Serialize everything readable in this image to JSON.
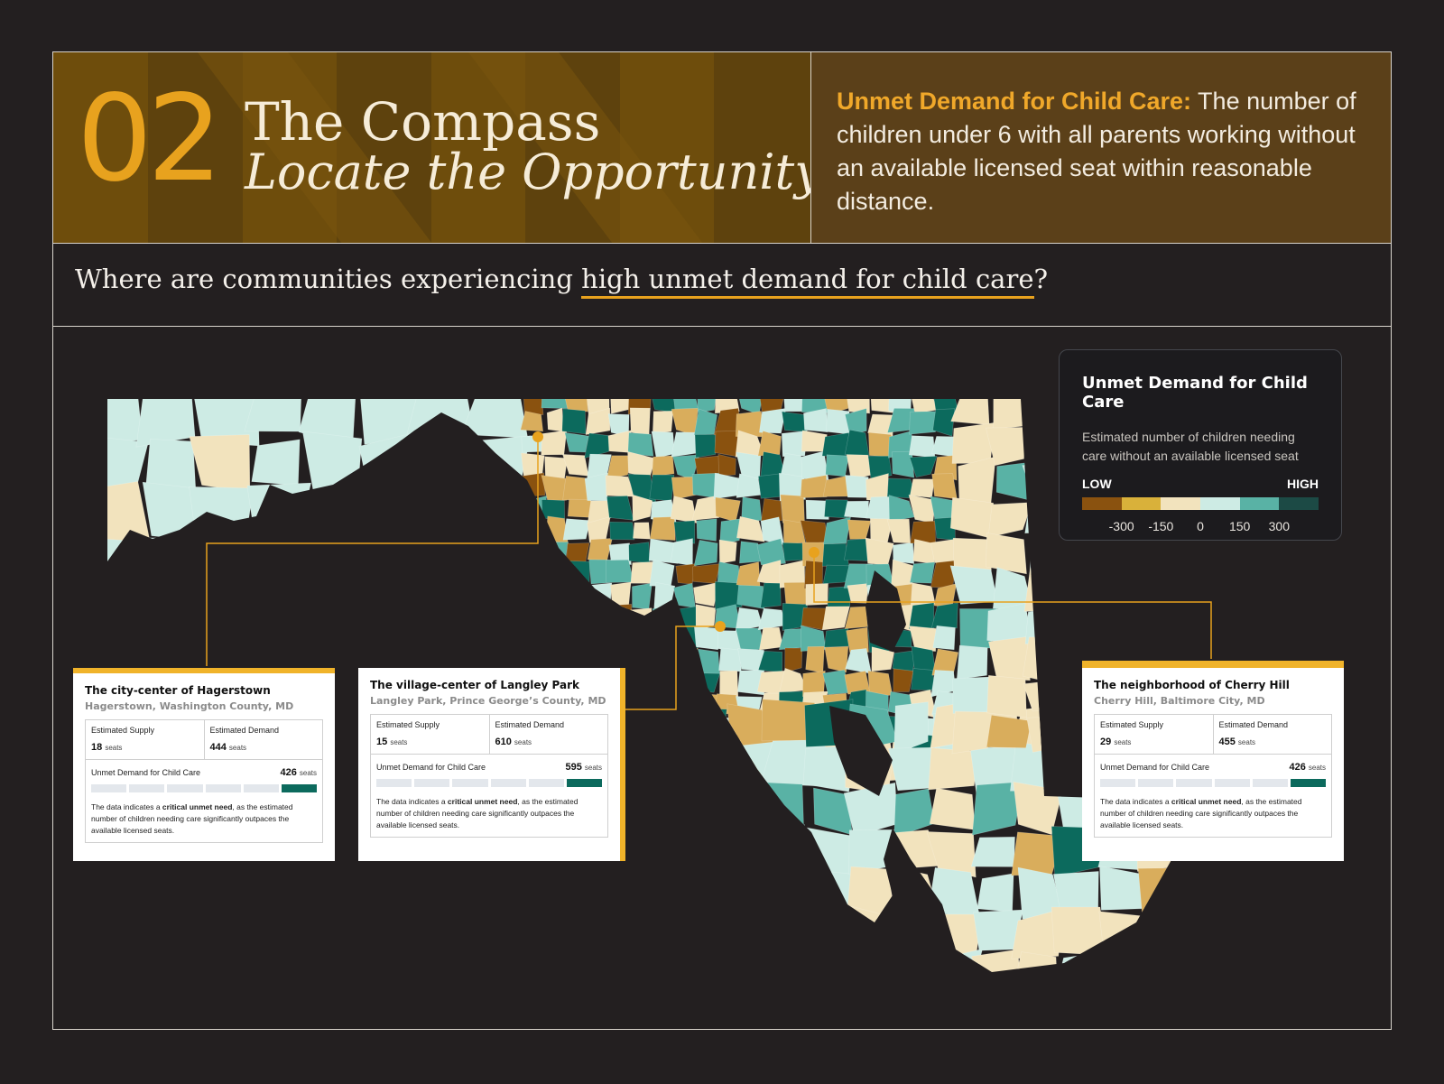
{
  "header": {
    "chapter_number": "02",
    "title": "The Compass",
    "subtitle": "Locate the Opportunity",
    "definition_term": "Unmet Demand for Child Care:",
    "definition_text": " The number of children under 6 with all parents working without an available licensed seat within reasonable distance."
  },
  "question": {
    "prefix": "Where are communities experiencing ",
    "highlight": "high unmet demand for child care",
    "suffix": "?"
  },
  "legend": {
    "title": "Unmet Demand for Child Care",
    "description": "Estimated number of children needing care without an available licensed seat",
    "low_label": "LOW",
    "high_label": "HIGH",
    "ticks": [
      "-300",
      "-150",
      "0",
      "150",
      "300"
    ],
    "colors": [
      "#8a520f",
      "#d9b13a",
      "#f2e3bd",
      "#cdebe4",
      "#59b2a5",
      "#1c4a45"
    ]
  },
  "callouts": [
    {
      "title": "The city-center of Hagerstown",
      "location": "Hagerstown, Washington County, MD",
      "supply_label": "Estimated Supply",
      "supply_value": "18",
      "demand_label": "Estimated Demand",
      "demand_value": "444",
      "unit": "seats",
      "unmet_label": "Unmet Demand for Child Care",
      "unmet_value": "426",
      "level": 6,
      "note_pre": "The data indicates a ",
      "note_bold": "critical unmet need",
      "note_post": ", as the estimated number of children needing care significantly outpaces the available licensed seats."
    },
    {
      "title": "The village-center of Langley Park",
      "location": "Langley Park, Prince George’s County, MD",
      "supply_label": "Estimated Supply",
      "supply_value": "15",
      "demand_label": "Estimated Demand",
      "demand_value": "610",
      "unit": "seats",
      "unmet_label": "Unmet Demand for Child Care",
      "unmet_value": "595",
      "level": 6,
      "note_pre": "The data indicates a ",
      "note_bold": "critical unmet need",
      "note_post": ", as the estimated number of children needing care significantly outpaces the available licensed seats."
    },
    {
      "title": "The neighborhood of Cherry Hill",
      "location": "Cherry Hill, Baltimore City, MD",
      "supply_label": "Estimated Supply",
      "supply_value": "29",
      "demand_label": "Estimated Demand",
      "demand_value": "455",
      "unit": "seats",
      "unmet_label": "Unmet Demand for Child Care",
      "unmet_value": "426",
      "level": 6,
      "note_pre": "The data indicates a ",
      "note_bold": "critical unmet need",
      "note_post": ", as the estimated number of children needing care significantly outpaces the available licensed seats."
    }
  ],
  "map": {
    "accent_color": "#e8a21e",
    "region_colors": [
      "#cdebe4",
      "#f2e3bd",
      "#d9ad5c",
      "#8a520f",
      "#59b2a5",
      "#0c6a5d"
    ]
  }
}
